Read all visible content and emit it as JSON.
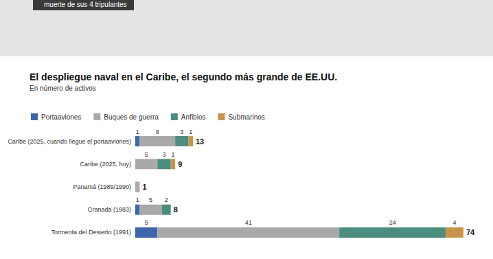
{
  "chart_data": {
    "type": "bar",
    "orientation": "horizontal",
    "stacked": true,
    "data_labels": true,
    "tick_labels": "y",
    "grid": false,
    "legend": "top-left",
    "title": "El despliegue naval en el Caribe, el segundo más grande de EE.UU.",
    "subtitle": "En número de activos",
    "annotations": [
      "muerte de sus 4 tripulantes"
    ],
    "categories": [
      "Caribe (2025, cuando llegue el portaaviones)",
      "Caribe (2025, hoy)",
      "Panamá (1989/1990)",
      "Granada (1983)",
      "Tormenta del Desierto (1991)"
    ],
    "xlim": [
      0,
      74
    ],
    "totals": [
      13,
      9,
      1,
      8,
      74
    ],
    "series": [
      {
        "name": "Portaaviones",
        "color": "#3f65ad",
        "values": [
          1,
          null,
          null,
          1,
          5
        ]
      },
      {
        "name": "Buques de guerra",
        "color": "#a9a9a9",
        "values": [
          8,
          5,
          1,
          5,
          41
        ],
        "value_labels": [
          "8",
          "5",
          null,
          "5",
          "41"
        ]
      },
      {
        "name": "Anfibios",
        "color": "#4b8e80",
        "values": [
          3,
          3,
          null,
          2,
          24
        ]
      },
      {
        "name": "Submarinos",
        "color": "#c99349",
        "values": [
          1,
          1,
          null,
          null,
          4
        ]
      }
    ]
  }
}
